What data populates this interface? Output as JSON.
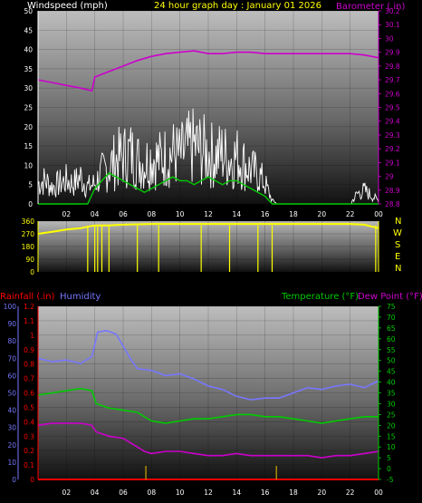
{
  "header": {
    "wind_title": "Windspeed (mph)",
    "date_title": "24 hour graph day : January 01 2026",
    "baro_title": "Barometer (.in)"
  },
  "direction_letters": [
    "N",
    "W",
    "S",
    "E",
    "N"
  ],
  "bottom_header": {
    "rain_title": "Rainfall (.in)",
    "humidity_title": "Humidity",
    "temp_title": "Temperature (°F)",
    "dew_title": "Dew Point (°F)"
  },
  "colors": {
    "wind": "#ffffff",
    "gust": "#00cc00",
    "barometer": "#cc00cc",
    "direction": "#ffff00",
    "rain": "#ff0000",
    "humidity": "#7777ff",
    "temperature": "#00cc00",
    "dewpoint": "#cc00cc",
    "date_text": "#ffff00"
  },
  "chart_data": [
    {
      "type": "line",
      "x_ticks": [
        "02",
        "04",
        "06",
        "08",
        "10",
        "12",
        "14",
        "16",
        "18",
        "20",
        "22",
        "00"
      ],
      "xlim": [
        0,
        24
      ],
      "ylim": [
        0,
        50
      ],
      "y_ticks": [
        0,
        5,
        10,
        15,
        20,
        25,
        30,
        35,
        40,
        45,
        50
      ],
      "ylabel": "Windspeed (mph)",
      "y2lim": [
        28.8,
        30.2
      ],
      "y2_ticks": [
        "28.8",
        "28.9",
        "29",
        "29.1",
        "29.2",
        "29.3",
        "29.4",
        "29.5",
        "29.6",
        "29.7",
        "29.8",
        "29.9",
        "30",
        "30.1",
        "30.2"
      ],
      "y2label": "Barometer (.in)",
      "title": "24 hour graph day : January 01 2026",
      "series": [
        {
          "name": "Windspeed (mph)",
          "color": "#ffffff",
          "x": [
            0,
            0.5,
            1,
            1.5,
            2,
            2.5,
            3,
            3.5,
            4,
            4.5,
            5,
            5.5,
            6,
            6.5,
            7,
            7.5,
            8,
            8.5,
            9,
            9.5,
            10,
            10.5,
            11,
            11.5,
            12,
            12.5,
            13,
            13.5,
            14,
            14.5,
            15,
            15.5,
            16,
            16.5,
            17,
            18,
            19,
            20,
            21,
            22,
            22.5,
            23,
            24
          ],
          "values": [
            6,
            7,
            5,
            6,
            7,
            6,
            8,
            5,
            6,
            9,
            11,
            13,
            14,
            15,
            13,
            12,
            14,
            13,
            14,
            15,
            14,
            16,
            17,
            16,
            15,
            14,
            15,
            13,
            14,
            12,
            10,
            9,
            6,
            1,
            0,
            0,
            0,
            0,
            0,
            0,
            3,
            4,
            1
          ]
        },
        {
          "name": "Wind gust",
          "color": "#00cc00",
          "x": [
            0,
            2,
            3.5,
            4,
            4.5,
            5,
            5.5,
            6,
            6.5,
            7,
            7.5,
            8,
            8.5,
            9,
            9.5,
            10,
            10.5,
            11,
            11.5,
            12,
            12.5,
            13,
            13.5,
            14,
            14.5,
            15,
            15.5,
            16,
            16.5,
            17,
            24
          ],
          "values": [
            0,
            0,
            0,
            4,
            6,
            8,
            7,
            6,
            5,
            4,
            3,
            4,
            5,
            6,
            7,
            6,
            6,
            5,
            6,
            7,
            6,
            5,
            6,
            6,
            5,
            4,
            3,
            2,
            0,
            0,
            0
          ]
        },
        {
          "name": "Barometer (.in)",
          "color": "#cc00cc",
          "x": [
            0,
            1,
            2,
            3,
            3.8,
            4,
            5,
            6,
            7,
            8,
            9,
            10,
            11,
            12,
            13,
            14,
            15,
            16,
            17,
            18,
            19,
            20,
            21,
            22,
            23,
            24
          ],
          "values": [
            29.7,
            29.68,
            29.66,
            29.64,
            29.62,
            29.72,
            29.76,
            29.8,
            29.84,
            29.87,
            29.89,
            29.9,
            29.91,
            29.89,
            29.89,
            29.9,
            29.9,
            29.89,
            29.89,
            29.89,
            29.89,
            29.89,
            29.89,
            29.89,
            29.88,
            29.86
          ]
        }
      ]
    },
    {
      "type": "line",
      "ylim": [
        0,
        360
      ],
      "y_ticks": [
        0,
        90,
        180,
        270,
        360
      ],
      "xlim": [
        0,
        24
      ],
      "series": [
        {
          "name": "Wind direction",
          "color": "#ffff00",
          "x": [
            0,
            1,
            2,
            3,
            3.5,
            4,
            5,
            6,
            8,
            10,
            12,
            14,
            16,
            18,
            20,
            22,
            23,
            24
          ],
          "values": [
            270,
            285,
            300,
            310,
            320,
            330,
            330,
            335,
            340,
            340,
            340,
            340,
            340,
            340,
            340,
            340,
            335,
            310
          ]
        }
      ]
    },
    {
      "type": "line",
      "xlim": [
        0,
        24
      ],
      "x_ticks": [
        "02",
        "04",
        "06",
        "08",
        "10",
        "12",
        "14",
        "16",
        "18",
        "20",
        "22",
        "00"
      ],
      "ylim": [
        0,
        1.2
      ],
      "y_ticks": [
        "0",
        "0.1",
        "0.2",
        "0.3",
        "0.4",
        "0.5",
        "0.6",
        "0.7",
        "0.8",
        "0.9",
        "1",
        "1.1",
        "1.2"
      ],
      "ylabel": "Rainfall (.in)",
      "humidity_ticks": [
        0,
        10,
        20,
        30,
        40,
        50,
        60,
        70,
        80,
        90,
        100
      ],
      "y2lim": [
        -5,
        75
      ],
      "y2_ticks": [
        "-5",
        "0",
        "5",
        "10",
        "15",
        "20",
        "25",
        "30",
        "35",
        "40",
        "45",
        "50",
        "55",
        "60",
        "65",
        "70",
        "75"
      ],
      "series": [
        {
          "name": "Humidity",
          "color": "#7777ff",
          "axis": "humidity",
          "x": [
            0,
            1,
            2,
            3,
            3.8,
            4.2,
            4.8,
            5.5,
            6,
            6.5,
            7,
            8,
            9,
            10,
            11,
            12,
            13,
            14,
            15,
            16,
            17,
            18,
            19,
            20,
            21,
            22,
            23,
            24
          ],
          "values": [
            70,
            68,
            69,
            67,
            71,
            85,
            86,
            84,
            77,
            70,
            64,
            63,
            60,
            61,
            58,
            54,
            52,
            48,
            46,
            47,
            47,
            50,
            53,
            52,
            54,
            55,
            53,
            57
          ]
        },
        {
          "name": "Temperature (°F)",
          "color": "#00cc00",
          "axis": "temp",
          "x": [
            0,
            1,
            2,
            3,
            3.8,
            4.1,
            5,
            6,
            7,
            8,
            9,
            10,
            11,
            12,
            13,
            14,
            15,
            16,
            17,
            18,
            19,
            20,
            21,
            22,
            23,
            24
          ],
          "values": [
            34,
            35,
            36,
            37,
            36,
            30,
            28,
            27,
            26,
            22,
            21,
            22,
            23,
            23,
            24,
            25,
            25,
            24,
            24,
            23,
            22,
            21,
            22,
            23,
            24,
            24
          ]
        },
        {
          "name": "Dew Point (°F)",
          "color": "#cc00cc",
          "axis": "temp",
          "x": [
            0,
            1,
            2,
            3,
            3.8,
            4.1,
            5,
            6,
            7,
            7.5,
            8,
            9,
            10,
            11,
            12,
            13,
            14,
            15,
            16,
            17,
            18,
            19,
            20,
            21,
            22,
            23,
            24
          ],
          "values": [
            20,
            21,
            21,
            21,
            20,
            17,
            15,
            14,
            10,
            8,
            7,
            8,
            8,
            7,
            6,
            6,
            7,
            6,
            6,
            6,
            6,
            6,
            5,
            6,
            6,
            7,
            8
          ]
        },
        {
          "name": "Rainfall (.in)",
          "color": "#ff0000",
          "axis": "rain",
          "x": [
            0,
            24
          ],
          "values": [
            0,
            0
          ]
        }
      ]
    }
  ]
}
